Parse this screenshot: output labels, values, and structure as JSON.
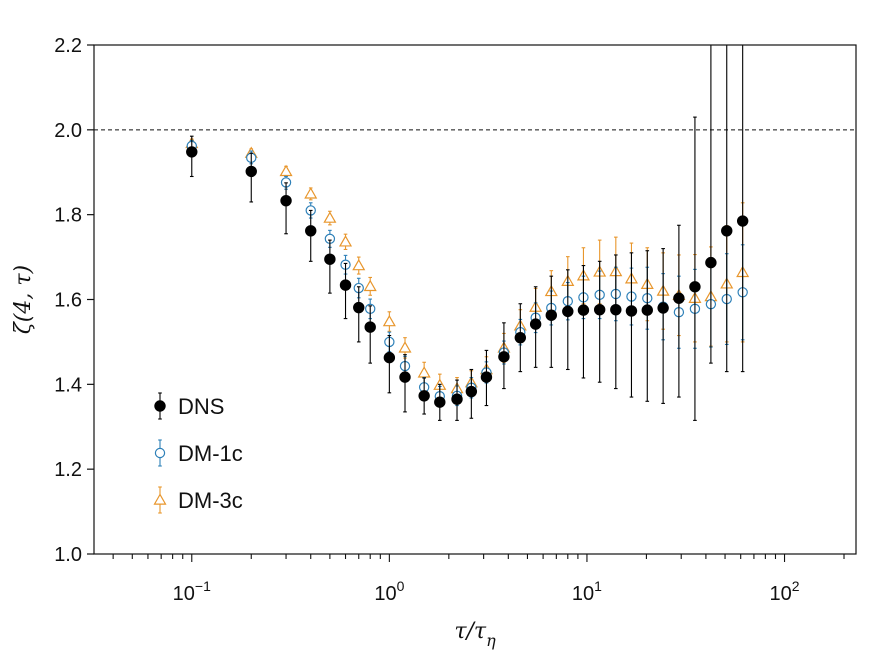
{
  "chart_data": {
    "type": "scatter",
    "x_scale": "log",
    "xlim": [
      0.032,
      230
    ],
    "ylim": [
      1.0,
      2.2
    ],
    "yticks": [
      "1.0",
      "1.2",
      "1.4",
      "1.6",
      "1.8",
      "2.0",
      "2.2"
    ],
    "xticks": [
      {
        "base": "10",
        "exp": "−1"
      },
      {
        "base": "10",
        "exp": "0"
      },
      {
        "base": "10",
        "exp": "1"
      },
      {
        "base": "10",
        "exp": "2"
      }
    ],
    "xlabel": {
      "main": "τ/τ",
      "sub": "η"
    },
    "ylabel": "ζ(4, τ)",
    "reference_line": 2.0,
    "legend_position": "lower-left",
    "series": [
      {
        "name": "DNS",
        "marker": "filled-circle",
        "color": "#000000",
        "points": [
          {
            "x": 0.1,
            "y": 1.948,
            "lo": 1.89,
            "hi": 1.985
          },
          {
            "x": 0.2,
            "y": 1.902,
            "lo": 1.83,
            "hi": 1.945
          },
          {
            "x": 0.3,
            "y": 1.833,
            "lo": 1.755,
            "hi": 1.875
          },
          {
            "x": 0.4,
            "y": 1.762,
            "lo": 1.69,
            "hi": 1.81
          },
          {
            "x": 0.5,
            "y": 1.695,
            "lo": 1.615,
            "hi": 1.74
          },
          {
            "x": 0.6,
            "y": 1.634,
            "lo": 1.555,
            "hi": 1.685
          },
          {
            "x": 0.7,
            "y": 1.581,
            "lo": 1.5,
            "hi": 1.63
          },
          {
            "x": 0.8,
            "y": 1.535,
            "lo": 1.45,
            "hi": 1.585
          },
          {
            "x": 1.0,
            "y": 1.463,
            "lo": 1.38,
            "hi": 1.515
          },
          {
            "x": 1.2,
            "y": 1.417,
            "lo": 1.335,
            "hi": 1.47
          },
          {
            "x": 1.5,
            "y": 1.373,
            "lo": 1.33,
            "hi": 1.415
          },
          {
            "x": 1.8,
            "y": 1.358,
            "lo": 1.315,
            "hi": 1.4
          },
          {
            "x": 2.2,
            "y": 1.365,
            "lo": 1.315,
            "hi": 1.41
          },
          {
            "x": 2.6,
            "y": 1.383,
            "lo": 1.32,
            "hi": 1.435
          },
          {
            "x": 3.1,
            "y": 1.417,
            "lo": 1.35,
            "hi": 1.48
          },
          {
            "x": 3.8,
            "y": 1.465,
            "lo": 1.39,
            "hi": 1.545
          },
          {
            "x": 4.6,
            "y": 1.51,
            "lo": 1.43,
            "hi": 1.59
          },
          {
            "x": 5.5,
            "y": 1.542,
            "lo": 1.44,
            "hi": 1.63
          },
          {
            "x": 6.6,
            "y": 1.563,
            "lo": 1.44,
            "hi": 1.655
          },
          {
            "x": 8.0,
            "y": 1.572,
            "lo": 1.435,
            "hi": 1.67
          },
          {
            "x": 9.6,
            "y": 1.575,
            "lo": 1.415,
            "hi": 1.68
          },
          {
            "x": 11.6,
            "y": 1.576,
            "lo": 1.405,
            "hi": 1.69
          },
          {
            "x": 14.0,
            "y": 1.576,
            "lo": 1.39,
            "hi": 1.705
          },
          {
            "x": 16.8,
            "y": 1.573,
            "lo": 1.37,
            "hi": 1.71
          },
          {
            "x": 20.2,
            "y": 1.575,
            "lo": 1.36,
            "hi": 1.715
          },
          {
            "x": 24.3,
            "y": 1.58,
            "lo": 1.355,
            "hi": 1.72
          },
          {
            "x": 29.2,
            "y": 1.603,
            "lo": 1.37,
            "hi": 1.775
          },
          {
            "x": 35.2,
            "y": 1.63,
            "lo": 1.315,
            "hi": 2.03
          },
          {
            "x": 42.4,
            "y": 1.687,
            "lo": 1.45,
            "hi": 2.2
          },
          {
            "x": 51.0,
            "y": 1.762,
            "lo": 1.43,
            "hi": 2.2
          },
          {
            "x": 61.4,
            "y": 1.785,
            "lo": 1.43,
            "hi": 2.2
          }
        ]
      },
      {
        "name": "DM-1c",
        "marker": "open-circle",
        "color": "#2e80b8",
        "points": [
          {
            "x": 0.1,
            "y": 1.962,
            "lo": 1.95,
            "hi": 1.975
          },
          {
            "x": 0.2,
            "y": 1.934,
            "lo": 1.92,
            "hi": 1.95
          },
          {
            "x": 0.3,
            "y": 1.876,
            "lo": 1.86,
            "hi": 1.89
          },
          {
            "x": 0.4,
            "y": 1.81,
            "lo": 1.792,
            "hi": 1.828
          },
          {
            "x": 0.5,
            "y": 1.743,
            "lo": 1.723,
            "hi": 1.763
          },
          {
            "x": 0.6,
            "y": 1.682,
            "lo": 1.66,
            "hi": 1.704
          },
          {
            "x": 0.7,
            "y": 1.627,
            "lo": 1.604,
            "hi": 1.65
          },
          {
            "x": 0.8,
            "y": 1.578,
            "lo": 1.555,
            "hi": 1.601
          },
          {
            "x": 1.0,
            "y": 1.5,
            "lo": 1.477,
            "hi": 1.523
          },
          {
            "x": 1.2,
            "y": 1.443,
            "lo": 1.42,
            "hi": 1.466
          },
          {
            "x": 1.5,
            "y": 1.393,
            "lo": 1.37,
            "hi": 1.416
          },
          {
            "x": 1.8,
            "y": 1.372,
            "lo": 1.349,
            "hi": 1.395
          },
          {
            "x": 2.2,
            "y": 1.373,
            "lo": 1.35,
            "hi": 1.396
          },
          {
            "x": 2.6,
            "y": 1.392,
            "lo": 1.368,
            "hi": 1.416
          },
          {
            "x": 3.1,
            "y": 1.428,
            "lo": 1.403,
            "hi": 1.453
          },
          {
            "x": 3.8,
            "y": 1.475,
            "lo": 1.448,
            "hi": 1.502
          },
          {
            "x": 4.6,
            "y": 1.523,
            "lo": 1.493,
            "hi": 1.553
          },
          {
            "x": 5.5,
            "y": 1.557,
            "lo": 1.522,
            "hi": 1.592
          },
          {
            "x": 6.6,
            "y": 1.58,
            "lo": 1.54,
            "hi": 1.62
          },
          {
            "x": 8.0,
            "y": 1.596,
            "lo": 1.552,
            "hi": 1.64
          },
          {
            "x": 9.6,
            "y": 1.605,
            "lo": 1.555,
            "hi": 1.655
          },
          {
            "x": 11.6,
            "y": 1.611,
            "lo": 1.555,
            "hi": 1.667
          },
          {
            "x": 14.0,
            "y": 1.613,
            "lo": 1.55,
            "hi": 1.676
          },
          {
            "x": 16.8,
            "y": 1.607,
            "lo": 1.54,
            "hi": 1.674
          },
          {
            "x": 20.2,
            "y": 1.603,
            "lo": 1.53,
            "hi": 1.676
          },
          {
            "x": 24.3,
            "y": 1.583,
            "lo": 1.505,
            "hi": 1.661
          },
          {
            "x": 29.2,
            "y": 1.57,
            "lo": 1.485,
            "hi": 1.655
          },
          {
            "x": 35.2,
            "y": 1.578,
            "lo": 1.485,
            "hi": 1.671
          },
          {
            "x": 42.4,
            "y": 1.589,
            "lo": 1.488,
            "hi": 1.69
          },
          {
            "x": 51.0,
            "y": 1.601,
            "lo": 1.494,
            "hi": 1.708
          },
          {
            "x": 61.4,
            "y": 1.617,
            "lo": 1.505,
            "hi": 1.729
          }
        ]
      },
      {
        "name": "DM-3c",
        "marker": "open-triangle",
        "color": "#e8962c",
        "points": [
          {
            "x": 0.1,
            "y": 1.968,
            "lo": 1.958,
            "hi": 1.978
          },
          {
            "x": 0.2,
            "y": 1.945,
            "lo": 1.935,
            "hi": 1.955
          },
          {
            "x": 0.3,
            "y": 1.902,
            "lo": 1.89,
            "hi": 1.914
          },
          {
            "x": 0.4,
            "y": 1.849,
            "lo": 1.835,
            "hi": 1.863
          },
          {
            "x": 0.5,
            "y": 1.792,
            "lo": 1.776,
            "hi": 1.808
          },
          {
            "x": 0.6,
            "y": 1.736,
            "lo": 1.718,
            "hi": 1.754
          },
          {
            "x": 0.7,
            "y": 1.68,
            "lo": 1.66,
            "hi": 1.7
          },
          {
            "x": 0.8,
            "y": 1.631,
            "lo": 1.61,
            "hi": 1.652
          },
          {
            "x": 1.0,
            "y": 1.548,
            "lo": 1.525,
            "hi": 1.571
          },
          {
            "x": 1.2,
            "y": 1.486,
            "lo": 1.462,
            "hi": 1.51
          },
          {
            "x": 1.5,
            "y": 1.427,
            "lo": 1.402,
            "hi": 1.452
          },
          {
            "x": 1.8,
            "y": 1.398,
            "lo": 1.372,
            "hi": 1.424
          },
          {
            "x": 2.2,
            "y": 1.39,
            "lo": 1.364,
            "hi": 1.416
          },
          {
            "x": 2.6,
            "y": 1.404,
            "lo": 1.376,
            "hi": 1.432
          },
          {
            "x": 3.1,
            "y": 1.435,
            "lo": 1.405,
            "hi": 1.465
          },
          {
            "x": 3.8,
            "y": 1.486,
            "lo": 1.452,
            "hi": 1.52
          },
          {
            "x": 4.6,
            "y": 1.538,
            "lo": 1.5,
            "hi": 1.576
          },
          {
            "x": 5.5,
            "y": 1.582,
            "lo": 1.538,
            "hi": 1.626
          },
          {
            "x": 6.6,
            "y": 1.619,
            "lo": 1.57,
            "hi": 1.668
          },
          {
            "x": 8.0,
            "y": 1.643,
            "lo": 1.585,
            "hi": 1.701
          },
          {
            "x": 9.6,
            "y": 1.656,
            "lo": 1.59,
            "hi": 1.722
          },
          {
            "x": 11.6,
            "y": 1.665,
            "lo": 1.59,
            "hi": 1.74
          },
          {
            "x": 14.0,
            "y": 1.666,
            "lo": 1.585,
            "hi": 1.747
          },
          {
            "x": 16.8,
            "y": 1.649,
            "lo": 1.565,
            "hi": 1.733
          },
          {
            "x": 20.2,
            "y": 1.636,
            "lo": 1.55,
            "hi": 1.722
          },
          {
            "x": 24.3,
            "y": 1.62,
            "lo": 1.53,
            "hi": 1.71
          },
          {
            "x": 29.2,
            "y": 1.61,
            "lo": 1.515,
            "hi": 1.705
          },
          {
            "x": 35.2,
            "y": 1.603,
            "lo": 1.5,
            "hi": 1.706
          },
          {
            "x": 42.4,
            "y": 1.607,
            "lo": 1.49,
            "hi": 1.724
          },
          {
            "x": 51.0,
            "y": 1.637,
            "lo": 1.5,
            "hi": 1.774
          },
          {
            "x": 61.4,
            "y": 1.664,
            "lo": 1.5,
            "hi": 1.828
          }
        ]
      }
    ]
  }
}
